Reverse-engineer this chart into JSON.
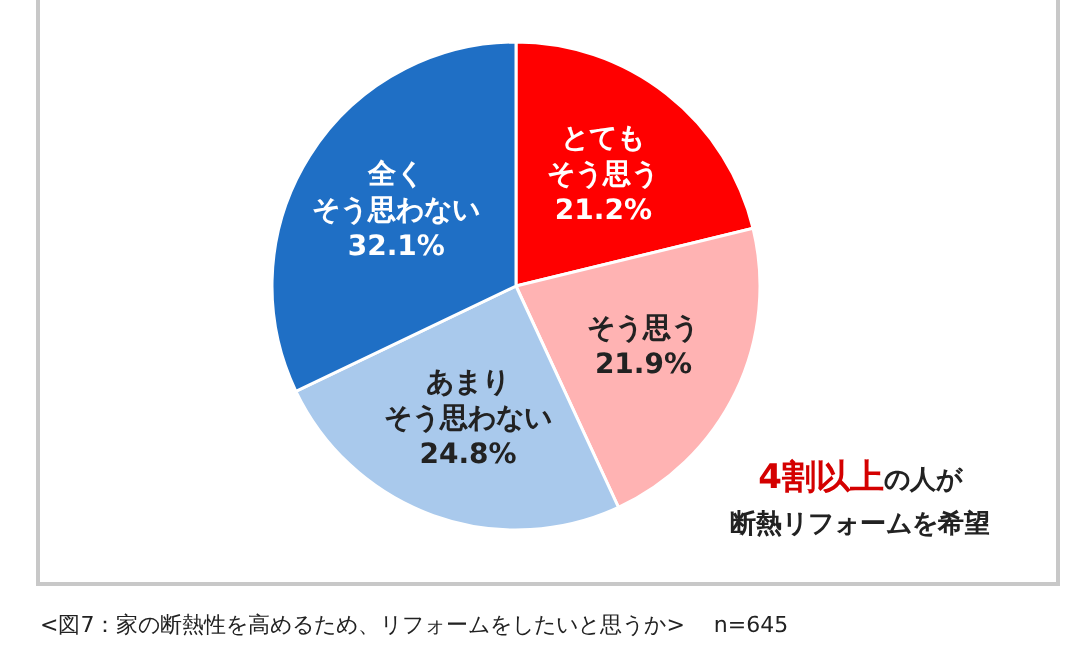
{
  "chart_data": {
    "type": "pie",
    "categories": [
      "とてもそう思う",
      "そう思う",
      "あまりそう思わない",
      "全くそう思わない"
    ],
    "value_labels": [
      "21.2%",
      "21.9%",
      "24.8%",
      "32.1%"
    ],
    "values": [
      21.2,
      21.9,
      24.8,
      32.1
    ],
    "colors": [
      "#ff0000",
      "#ffb3b3",
      "#a9c9ec",
      "#1f6fc5"
    ],
    "data_labels": true,
    "annotations": [
      "4割以上の人が",
      "断熱リフォームを希望",
      "<図7：家の断熱性を高めるため、リフォームをしたいと思うか>　 n=645"
    ]
  }
}
